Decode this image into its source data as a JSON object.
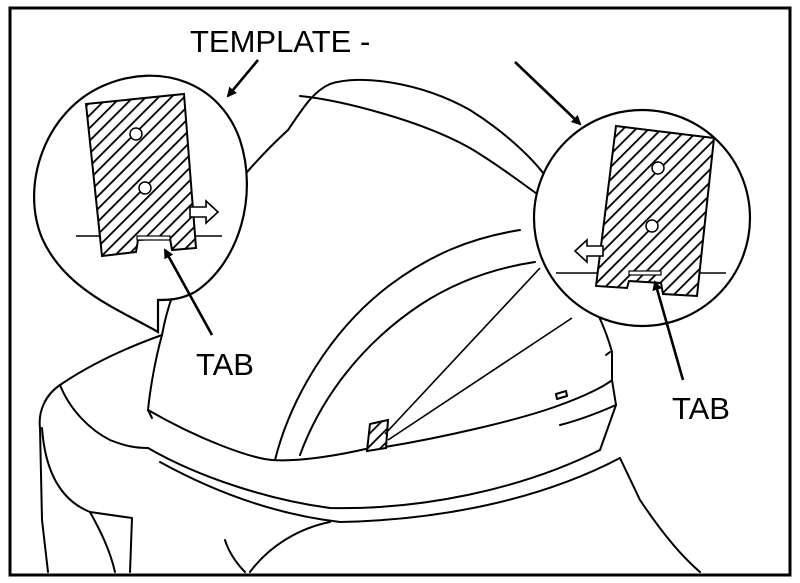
{
  "diagram": {
    "labels": {
      "template": "TEMPLATE -",
      "tab_left": "TAB",
      "tab_right": "TAB"
    },
    "colors": {
      "ink": "#000000",
      "background": "#ffffff"
    }
  }
}
